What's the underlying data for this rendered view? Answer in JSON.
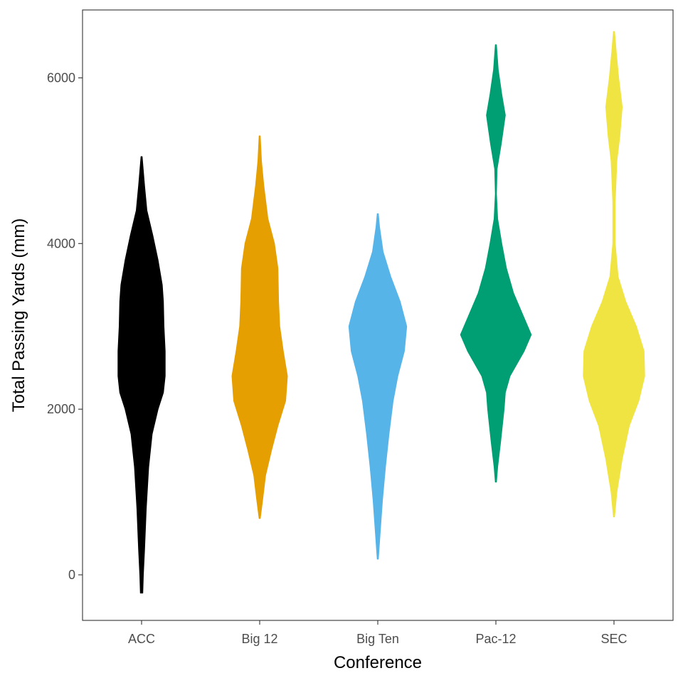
{
  "chart_data": {
    "type": "violin",
    "title": "",
    "xlabel": "Conference",
    "ylabel": "Total Passing Yards (mm)",
    "categories": [
      "ACC",
      "Big 12",
      "Big Ten",
      "Pac-12",
      "SEC"
    ],
    "ylim": [
      -550,
      6820
    ],
    "yticks": [
      0,
      2000,
      4000,
      6000
    ],
    "grid": false,
    "legend": "none",
    "series": [
      {
        "category": "ACC",
        "color": "#000000",
        "min": -220,
        "max": 5050,
        "density": [
          [
            -220,
            0.02
          ],
          [
            0,
            0.03
          ],
          [
            300,
            0.05
          ],
          [
            800,
            0.08
          ],
          [
            1300,
            0.12
          ],
          [
            1700,
            0.18
          ],
          [
            2000,
            0.28
          ],
          [
            2200,
            0.37
          ],
          [
            2400,
            0.4
          ],
          [
            2700,
            0.4
          ],
          [
            3000,
            0.38
          ],
          [
            3300,
            0.37
          ],
          [
            3500,
            0.35
          ],
          [
            3800,
            0.28
          ],
          [
            4100,
            0.19
          ],
          [
            4400,
            0.09
          ],
          [
            4700,
            0.05
          ],
          [
            5050,
            0.01
          ]
        ]
      },
      {
        "category": "Big 12",
        "color": "#E69F00",
        "min": 680,
        "max": 5300,
        "density": [
          [
            680,
            0.01
          ],
          [
            900,
            0.05
          ],
          [
            1200,
            0.1
          ],
          [
            1500,
            0.2
          ],
          [
            1800,
            0.31
          ],
          [
            2100,
            0.44
          ],
          [
            2400,
            0.47
          ],
          [
            2700,
            0.4
          ],
          [
            3000,
            0.34
          ],
          [
            3300,
            0.32
          ],
          [
            3700,
            0.31
          ],
          [
            4000,
            0.25
          ],
          [
            4300,
            0.14
          ],
          [
            4700,
            0.07
          ],
          [
            5000,
            0.03
          ],
          [
            5300,
            0.01
          ]
        ]
      },
      {
        "category": "Big Ten",
        "color": "#56B4E9",
        "min": 190,
        "max": 4360,
        "density": [
          [
            190,
            0.01
          ],
          [
            500,
            0.04
          ],
          [
            900,
            0.08
          ],
          [
            1300,
            0.13
          ],
          [
            1700,
            0.19
          ],
          [
            2100,
            0.26
          ],
          [
            2400,
            0.34
          ],
          [
            2700,
            0.45
          ],
          [
            3000,
            0.49
          ],
          [
            3300,
            0.38
          ],
          [
            3600,
            0.22
          ],
          [
            3900,
            0.09
          ],
          [
            4200,
            0.03
          ],
          [
            4360,
            0.01
          ]
        ]
      },
      {
        "category": "Pac-12",
        "color": "#009E73",
        "min": 1120,
        "max": 6400,
        "density": [
          [
            1120,
            0.01
          ],
          [
            1300,
            0.03
          ],
          [
            1600,
            0.08
          ],
          [
            2000,
            0.14
          ],
          [
            2200,
            0.16
          ],
          [
            2400,
            0.24
          ],
          [
            2700,
            0.48
          ],
          [
            2900,
            0.6
          ],
          [
            3100,
            0.48
          ],
          [
            3400,
            0.3
          ],
          [
            3700,
            0.18
          ],
          [
            4000,
            0.1
          ],
          [
            4300,
            0.03
          ],
          [
            4600,
            0.01
          ],
          [
            4900,
            0.02
          ],
          [
            5200,
            0.09
          ],
          [
            5550,
            0.16
          ],
          [
            5800,
            0.1
          ],
          [
            6100,
            0.04
          ],
          [
            6400,
            0.01
          ]
        ]
      },
      {
        "category": "SEC",
        "color": "#F0E442",
        "min": 700,
        "max": 6560,
        "density": [
          [
            700,
            0.01
          ],
          [
            1000,
            0.05
          ],
          [
            1400,
            0.14
          ],
          [
            1800,
            0.26
          ],
          [
            2100,
            0.42
          ],
          [
            2400,
            0.52
          ],
          [
            2700,
            0.51
          ],
          [
            3000,
            0.38
          ],
          [
            3300,
            0.2
          ],
          [
            3600,
            0.07
          ],
          [
            4000,
            0.02
          ],
          [
            4500,
            0.02
          ],
          [
            5000,
            0.05
          ],
          [
            5300,
            0.1
          ],
          [
            5650,
            0.14
          ],
          [
            6000,
            0.08
          ],
          [
            6300,
            0.04
          ],
          [
            6560,
            0.01
          ]
        ]
      }
    ]
  }
}
